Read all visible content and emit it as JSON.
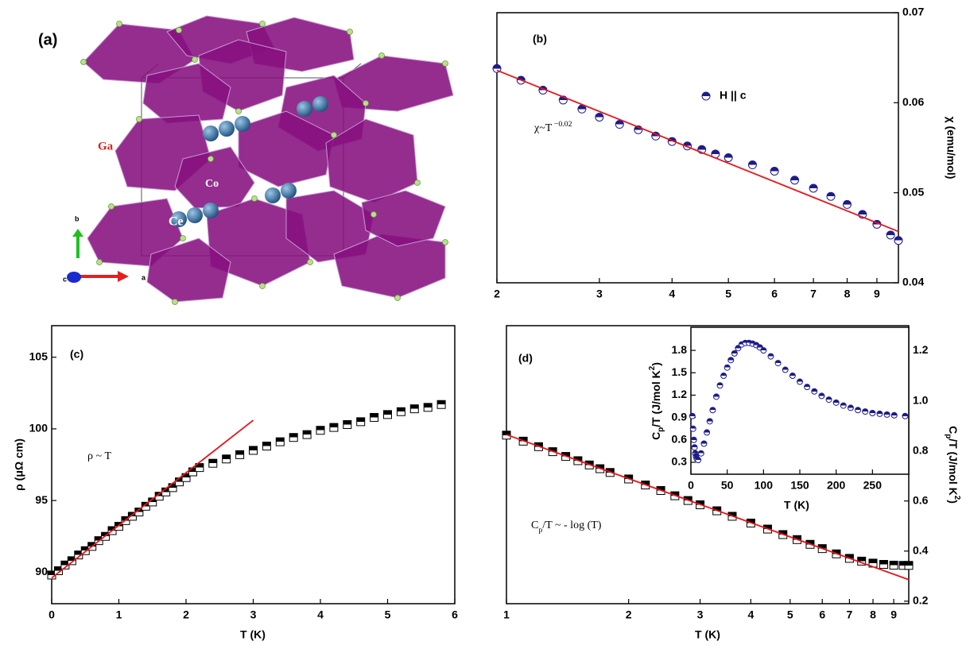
{
  "structure": {
    "label": "(a)",
    "atoms": [
      "Ga",
      "Co",
      "Ce"
    ],
    "axes": [
      "b",
      "a",
      "c"
    ]
  },
  "chart_data": [
    {
      "type": "scatter",
      "label": "(b)",
      "xscale": "log",
      "yaxis": "right",
      "xlim": [
        2,
        9.8
      ],
      "xticks": [
        2,
        3,
        4,
        5,
        6,
        7,
        8,
        9
      ],
      "ylim": [
        0.04,
        0.07
      ],
      "yticks": [
        0.04,
        0.05,
        0.06,
        0.07
      ],
      "ylabel": "χ (emu/mol)",
      "annotation": [
        "χ~T",
        {
          "text": " −0.02",
          "shift": "super"
        }
      ],
      "series": [
        {
          "name": "H || c",
          "color": "#1c1c8a",
          "marker": "half-circle",
          "x": [
            2,
            2.2,
            2.4,
            2.6,
            2.8,
            3,
            3.25,
            3.5,
            3.75,
            4,
            4.25,
            4.5,
            4.75,
            5,
            5.5,
            6,
            6.5,
            7,
            7.5,
            8,
            8.5,
            9,
            9.5,
            9.8
          ],
          "values": [
            0.0638,
            0.0625,
            0.0614,
            0.0603,
            0.0593,
            0.0584,
            0.0576,
            0.057,
            0.0563,
            0.0557,
            0.0552,
            0.0548,
            0.0543,
            0.0539,
            0.0531,
            0.0524,
            0.0514,
            0.0505,
            0.0496,
            0.0487,
            0.0476,
            0.0465,
            0.0453,
            0.0447
          ]
        },
        {
          "color": "#e8141c",
          "marker": "line",
          "x": [
            2,
            9.8
          ],
          "values": [
            0.0636,
            0.0457
          ]
        }
      ]
    },
    {
      "type": "scatter",
      "label": "(c)",
      "xscale": "linear",
      "yaxis": "left",
      "xlim": [
        0,
        6
      ],
      "xticks": [
        0,
        1,
        2,
        3,
        4,
        5,
        6
      ],
      "ylim": [
        87.8,
        107.2
      ],
      "yticks": [
        90,
        95,
        100,
        105
      ],
      "xlabel": "T (K)",
      "ylabel": "ρ (μΩ cm)",
      "annotation": [
        "ρ ~ T"
      ],
      "series": [
        {
          "color": "#000000",
          "marker": "half-square",
          "x": [
            0,
            0.1,
            0.2,
            0.3,
            0.4,
            0.5,
            0.6,
            0.7,
            0.8,
            0.9,
            1,
            1.1,
            1.2,
            1.3,
            1.4,
            1.5,
            1.6,
            1.7,
            1.8,
            1.9,
            2,
            2.1,
            2.2,
            2.4,
            2.6,
            2.8,
            3,
            3.2,
            3.4,
            3.6,
            3.8,
            4,
            4.2,
            4.4,
            4.6,
            4.8,
            5,
            5.2,
            5.4,
            5.6,
            5.8
          ],
          "values": [
            89.8,
            90.1,
            90.5,
            90.8,
            91.2,
            91.5,
            91.8,
            92.2,
            92.5,
            92.9,
            93.2,
            93.6,
            93.9,
            94.2,
            94.6,
            94.9,
            95.3,
            95.6,
            95.9,
            96.3,
            96.6,
            97,
            97.3,
            97.6,
            97.9,
            98.2,
            98.5,
            98.8,
            99.1,
            99.4,
            99.6,
            99.9,
            100.1,
            100.3,
            100.5,
            100.8,
            101,
            101.2,
            101.4,
            101.5,
            101.7
          ]
        },
        {
          "color": "#e8141c",
          "marker": "line",
          "x": [
            0,
            3
          ],
          "values": [
            89.6,
            100.6
          ]
        }
      ]
    },
    {
      "type": "scatter",
      "label": "(d)",
      "xscale": "log",
      "yaxis": "right",
      "xlim": [
        1,
        9.8
      ],
      "xticks": [
        1,
        2,
        3,
        4,
        5,
        6,
        7,
        8,
        9
      ],
      "ylim": [
        0.19,
        1.3
      ],
      "yticks": [
        0.2,
        0.4,
        0.6,
        0.8,
        {
          "value": 1,
          "label": "1.0"
        },
        1.2
      ],
      "xlabel": "T (K)",
      "ylabel": [
        "C",
        {
          "text": "p",
          "shift": "sub"
        },
        "/T (J/mol K",
        {
          "text": "2",
          "shift": "super"
        },
        ")"
      ],
      "annotation": [
        "C",
        {
          "text": "p",
          "shift": "sub"
        },
        "/T ~ - log (T)"
      ],
      "series": [
        {
          "color": "#000000",
          "marker": "half-square",
          "x": [
            1,
            1.1,
            1.2,
            1.3,
            1.4,
            1.5,
            1.6,
            1.7,
            1.8,
            2,
            2.2,
            2.4,
            2.6,
            2.8,
            3,
            3.3,
            3.6,
            4,
            4.4,
            4.8,
            5.2,
            5.6,
            6,
            6.5,
            7,
            7.5,
            8,
            8.5,
            9,
            9.5,
            9.8
          ],
          "values": [
            0.863,
            0.839,
            0.817,
            0.797,
            0.778,
            0.761,
            0.744,
            0.729,
            0.714,
            0.688,
            0.664,
            0.642,
            0.621,
            0.602,
            0.585,
            0.561,
            0.539,
            0.512,
            0.488,
            0.466,
            0.446,
            0.427,
            0.41,
            0.389,
            0.371,
            0.36,
            0.352,
            0.347,
            0.344,
            0.343,
            0.343
          ]
        },
        {
          "color": "#e8141c",
          "marker": "line",
          "x": [
            1,
            9.8
          ],
          "values": [
            0.865,
            0.286
          ]
        }
      ]
    },
    {
      "type": "scatter",
      "xscale": "linear",
      "yaxis": "left",
      "xlim": [
        0,
        300
      ],
      "xticks": [
        0,
        50,
        100,
        150,
        200,
        250
      ],
      "ylim": [
        0.14,
        2.11
      ],
      "yticks": [
        0.3,
        0.6,
        0.9,
        1.2,
        1.5,
        1.8
      ],
      "xlabel": "T (K)",
      "ylabel": [
        "C",
        {
          "text": "p",
          "shift": "sub"
        },
        "/T (J/mol K",
        {
          "text": "2",
          "shift": "super"
        },
        ")"
      ],
      "series": [
        {
          "color": "#1c1c8a",
          "marker": "half-circle",
          "x": [
            2,
            3,
            4,
            5,
            6,
            7,
            8,
            10,
            14,
            18,
            22,
            26,
            30,
            35,
            40,
            45,
            50,
            55,
            60,
            65,
            70,
            75,
            80,
            85,
            90,
            95,
            100,
            110,
            120,
            130,
            140,
            150,
            160,
            170,
            180,
            190,
            200,
            210,
            220,
            230,
            240,
            250,
            260,
            270,
            280,
            295
          ],
          "values": [
            0.92,
            0.75,
            0.6,
            0.5,
            0.42,
            0.38,
            0.35,
            0.33,
            0.42,
            0.55,
            0.7,
            0.85,
            1.0,
            1.18,
            1.33,
            1.46,
            1.57,
            1.67,
            1.76,
            1.83,
            1.88,
            1.9,
            1.9,
            1.89,
            1.87,
            1.84,
            1.8,
            1.72,
            1.63,
            1.54,
            1.46,
            1.38,
            1.31,
            1.25,
            1.19,
            1.14,
            1.1,
            1.06,
            1.03,
            1.0,
            0.98,
            0.96,
            0.95,
            0.94,
            0.93,
            0.92
          ]
        }
      ]
    }
  ]
}
